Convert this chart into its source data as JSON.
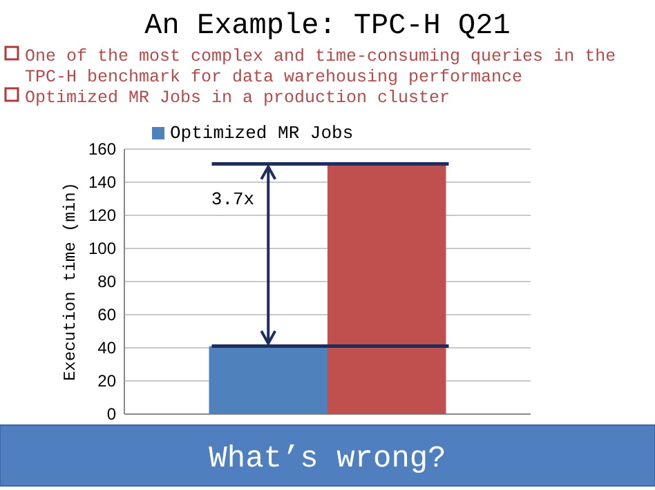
{
  "chart_data": {
    "type": "bar",
    "title": "An Example: TPC-H Q21",
    "ylabel": "Execution time (min)",
    "categories": [
      null
    ],
    "series": [
      {
        "name": "Optimized MR Jobs",
        "color": "#4f81bd",
        "values": [
          41
        ]
      },
      {
        "color": "#c0504d",
        "values": [
          151
        ]
      }
    ],
    "ylim": [
      0,
      160
    ],
    "yticks": [
      0,
      20,
      40,
      60,
      80,
      100,
      120,
      140,
      160
    ],
    "grid": "y",
    "legend": "top",
    "ref_lines": [
      {
        "axis": "y",
        "value": 41,
        "color": "#1f2d5c"
      },
      {
        "axis": "y",
        "value": 151,
        "color": "#1f2d5c"
      }
    ],
    "annotations": [
      "One of the most complex and time-consuming queries in the TPC-H benchmark for data warehousing performance",
      "Optimized MR Jobs in a production cluster",
      "3.7x",
      "What’s wrong?"
    ]
  }
}
